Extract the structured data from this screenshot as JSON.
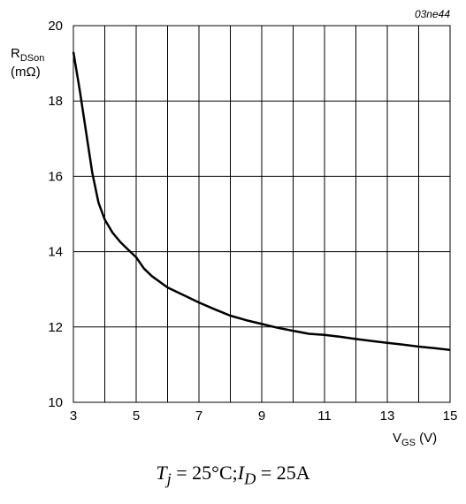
{
  "figure_code": "03ne44",
  "y_label": {
    "main": "R",
    "sub": "DSon",
    "unit": "(mΩ)"
  },
  "x_label": {
    "main": "V",
    "sub": "GS",
    "unit": " (V)"
  },
  "caption": {
    "tj_var": "T",
    "tj_sub": "j",
    "tj_val": " = 25°C;",
    "id_var": "I",
    "id_sub": "D",
    "id_val": " = 25A"
  },
  "chart_data": {
    "type": "line",
    "x_ticks": [
      "3",
      "5",
      "7",
      "9",
      "11",
      "13",
      "15"
    ],
    "y_ticks": [
      "10",
      "12",
      "14",
      "16",
      "18",
      "20"
    ],
    "xlim": [
      3,
      15
    ],
    "ylim": [
      10,
      20
    ],
    "grid": true,
    "series": [
      {
        "x": [
          3.0,
          3.2,
          3.4,
          3.6,
          3.8,
          4.0,
          4.25,
          4.5,
          4.75,
          5.0,
          5.25,
          5.5,
          6.0,
          6.5,
          7.0,
          7.5,
          8.0,
          8.5,
          9.0,
          9.5,
          10.0,
          10.5,
          11.0,
          11.5,
          12.0,
          12.5,
          13.0,
          13.5,
          14.0,
          14.5,
          15.0
        ],
        "y": [
          19.3,
          18.3,
          17.2,
          16.1,
          15.3,
          14.85,
          14.5,
          14.25,
          14.05,
          13.85,
          13.55,
          13.35,
          13.05,
          12.85,
          12.65,
          12.47,
          12.3,
          12.18,
          12.08,
          11.98,
          11.9,
          11.82,
          11.79,
          11.74,
          11.68,
          11.63,
          11.58,
          11.53,
          11.48,
          11.44,
          11.39
        ]
      }
    ]
  }
}
